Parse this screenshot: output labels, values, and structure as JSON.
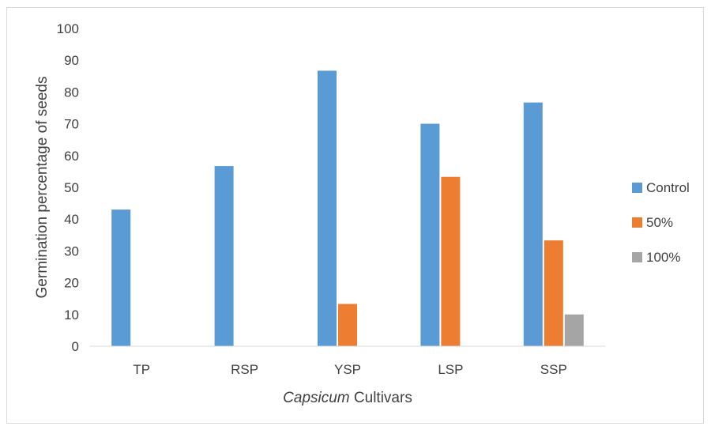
{
  "chart_data": {
    "type": "bar",
    "title": "",
    "xlabel_italic": "Capsicum",
    "xlabel_rest": " Cultivars",
    "ylabel": "Germination percentage of seeds",
    "categories": [
      "TP",
      "RSP",
      "YSP",
      "LSP",
      "SSP"
    ],
    "series": [
      {
        "name": "Control",
        "color": "#5b9bd5",
        "values": [
          43,
          56.7,
          86.7,
          70,
          76.7
        ]
      },
      {
        "name": "50%",
        "color": "#ed7d31",
        "values": [
          0,
          0,
          13.3,
          53.3,
          33.3
        ]
      },
      {
        "name": "100%",
        "color": "#a5a5a5",
        "values": [
          0,
          0,
          0,
          0,
          10
        ]
      }
    ],
    "ylim": [
      0,
      100
    ],
    "yticks": [
      "0",
      "10",
      "20",
      "30",
      "40",
      "50",
      "60",
      "70",
      "80",
      "90",
      "100"
    ],
    "grid": false,
    "legend_position": "right"
  }
}
